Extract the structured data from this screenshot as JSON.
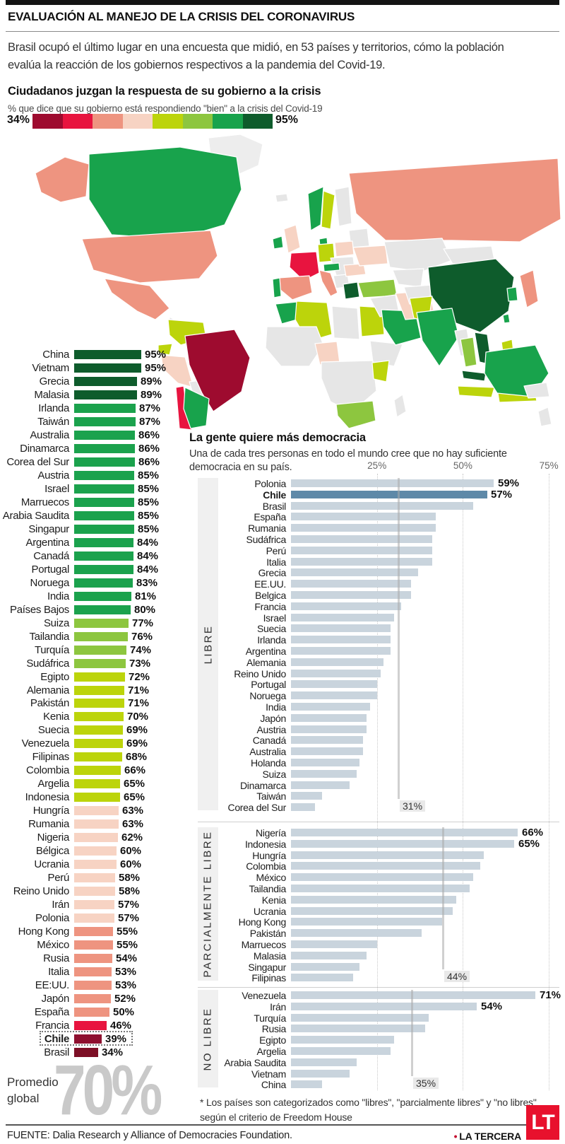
{
  "header": {
    "kicker": "EVALUACIÓN AL MANEJO DE LA CRISIS DEL CORONAVIRUS",
    "intro": "Brasil ocupó el último lugar en una encuesta que midió, en 53 países y territorios, cómo la población evalúa la reacción de los gobiernos respectivos a la pandemia del Covid-19."
  },
  "promedio": {
    "label": "Promedio global",
    "value": "70%"
  },
  "footnote": {
    "text": "* Los países son categorizados como \"libres\", \"parcialmente libres\" y \"no libres\" según el criterio de Freedom House"
  },
  "footer": {
    "source": "FUENTE: Dalia Research y Alliance of Democracies Foundation.",
    "brand": "LA TERCERA",
    "logo_text": "LT"
  },
  "chart_data": [
    {
      "type": "bar",
      "title": "Ciudadanos juzgan la respuesta de su gobierno a la crisis",
      "subtitle": "% que dice que su gobierno está respondiendo \"bien\" a la crisis del Covid-19",
      "unit": "%",
      "xlim": [
        0,
        95
      ],
      "scale_min_label": "34%",
      "scale_max_label": "95%",
      "scale_colors": [
        "#9e0b2f",
        "#e8143f",
        "#ee9480",
        "#f7d3c3",
        "#bcd40b",
        "#8dc63f",
        "#18a34c",
        "#0e5c2c"
      ],
      "items": [
        {
          "name": "China",
          "value": 95,
          "color": "#0e5c2c"
        },
        {
          "name": "Vietnam",
          "value": 95,
          "color": "#0e5c2c"
        },
        {
          "name": "Grecia",
          "value": 89,
          "color": "#0e5c2c"
        },
        {
          "name": "Malasia",
          "value": 89,
          "color": "#0e5c2c"
        },
        {
          "name": "Irlanda",
          "value": 87,
          "color": "#1ba24d"
        },
        {
          "name": "Taiwán",
          "value": 87,
          "color": "#1ba24d"
        },
        {
          "name": "Australia",
          "value": 86,
          "color": "#1ba24d"
        },
        {
          "name": "Dinamarca",
          "value": 86,
          "color": "#1ba24d"
        },
        {
          "name": "Corea del Sur",
          "value": 86,
          "color": "#1ba24d"
        },
        {
          "name": "Austria",
          "value": 85,
          "color": "#1ba24d"
        },
        {
          "name": "Israel",
          "value": 85,
          "color": "#1ba24d"
        },
        {
          "name": "Marruecos",
          "value": 85,
          "color": "#1ba24d"
        },
        {
          "name": "Arabia Saudita",
          "value": 85,
          "color": "#1ba24d"
        },
        {
          "name": "Singapur",
          "value": 85,
          "color": "#1ba24d"
        },
        {
          "name": "Argentina",
          "value": 84,
          "color": "#1ba24d"
        },
        {
          "name": "Canadá",
          "value": 84,
          "color": "#1ba24d"
        },
        {
          "name": "Portugal",
          "value": 84,
          "color": "#1ba24d"
        },
        {
          "name": "Noruega",
          "value": 83,
          "color": "#1ba24d"
        },
        {
          "name": "India",
          "value": 81,
          "color": "#1ba24d"
        },
        {
          "name": "Países Bajos",
          "value": 80,
          "color": "#1ba24d"
        },
        {
          "name": "Suiza",
          "value": 77,
          "color": "#8dc63f"
        },
        {
          "name": "Tailandia",
          "value": 76,
          "color": "#8dc63f"
        },
        {
          "name": "Turquía",
          "value": 74,
          "color": "#8dc63f"
        },
        {
          "name": "Sudáfrica",
          "value": 73,
          "color": "#8dc63f"
        },
        {
          "name": "Egipto",
          "value": 72,
          "color": "#bcd40b"
        },
        {
          "name": "Alemania",
          "value": 71,
          "color": "#bcd40b"
        },
        {
          "name": "Pakistán",
          "value": 71,
          "color": "#bcd40b"
        },
        {
          "name": "Kenia",
          "value": 70,
          "color": "#bcd40b"
        },
        {
          "name": "Suecia",
          "value": 69,
          "color": "#bcd40b"
        },
        {
          "name": "Venezuela",
          "value": 69,
          "color": "#bcd40b"
        },
        {
          "name": "Filipinas",
          "value": 68,
          "color": "#bcd40b"
        },
        {
          "name": "Colombia",
          "value": 66,
          "color": "#bcd40b"
        },
        {
          "name": "Argelia",
          "value": 65,
          "color": "#bcd40b"
        },
        {
          "name": "Indonesia",
          "value": 65,
          "color": "#bcd40b"
        },
        {
          "name": "Hungría",
          "value": 63,
          "color": "#f7d3c3"
        },
        {
          "name": "Rumania",
          "value": 63,
          "color": "#f7d3c3"
        },
        {
          "name": "Nigeria",
          "value": 62,
          "color": "#f7d3c3"
        },
        {
          "name": "Bélgica",
          "value": 60,
          "color": "#f7d3c3"
        },
        {
          "name": "Ucrania",
          "value": 60,
          "color": "#f7d3c3"
        },
        {
          "name": "Perú",
          "value": 58,
          "color": "#f7d3c3"
        },
        {
          "name": "Reino Unido",
          "value": 58,
          "color": "#f7d3c3"
        },
        {
          "name": "Irán",
          "value": 57,
          "color": "#f7d3c3"
        },
        {
          "name": "Polonia",
          "value": 57,
          "color": "#f7d3c3"
        },
        {
          "name": "Hong Kong",
          "value": 55,
          "color": "#ee9480"
        },
        {
          "name": "México",
          "value": 55,
          "color": "#ee9480"
        },
        {
          "name": "Rusia",
          "value": 54,
          "color": "#ee9480"
        },
        {
          "name": "Italia",
          "value": 53,
          "color": "#ee9480"
        },
        {
          "name": "EE:UU.",
          "value": 53,
          "color": "#ee9480"
        },
        {
          "name": "Japón",
          "value": 52,
          "color": "#ee9480"
        },
        {
          "name": "España",
          "value": 50,
          "color": "#ee9480"
        },
        {
          "name": "Francia",
          "value": 46,
          "color": "#e8143f"
        },
        {
          "name": "Chile",
          "value": 39,
          "color": "#8e0f2f",
          "bold": true,
          "boxed": true
        },
        {
          "name": "Brasil",
          "value": 34,
          "color": "#7d0f26"
        }
      ]
    },
    {
      "type": "bar",
      "title": "La gente quiere más democracia",
      "subtitle": "Una de cada tres personas en todo el mundo cree que no hay suficiente democracia en su país.",
      "x_ticks": [
        "25%",
        "50%",
        "75%"
      ],
      "xlim": [
        0,
        78
      ],
      "bar_color": "#c9d4dd",
      "highlight_color": "#5e89a8",
      "groups": [
        {
          "label": "LIBRE",
          "average": 31,
          "average_label": "31%",
          "items": [
            {
              "name": "Polonia",
              "value": 59,
              "show_value": "59%"
            },
            {
              "name": "Chile",
              "value": 57,
              "show_value": "57%",
              "bold": true,
              "highlight": true
            },
            {
              "name": "Brasil",
              "value": 53
            },
            {
              "name": "España",
              "value": 42
            },
            {
              "name": "Rumania",
              "value": 42
            },
            {
              "name": "Sudáfrica",
              "value": 41
            },
            {
              "name": "Perú",
              "value": 41
            },
            {
              "name": "Italia",
              "value": 41
            },
            {
              "name": "Grecia",
              "value": 37
            },
            {
              "name": "EE.UU.",
              "value": 35
            },
            {
              "name": "Belgica",
              "value": 35
            },
            {
              "name": "Francia",
              "value": 32
            },
            {
              "name": "Israel",
              "value": 30
            },
            {
              "name": "Suecia",
              "value": 29
            },
            {
              "name": "Irlanda",
              "value": 29
            },
            {
              "name": "Argentina",
              "value": 29
            },
            {
              "name": "Alemania",
              "value": 27
            },
            {
              "name": "Reino Unido",
              "value": 26
            },
            {
              "name": "Portugal",
              "value": 25
            },
            {
              "name": "Noruega",
              "value": 25
            },
            {
              "name": "India",
              "value": 23
            },
            {
              "name": "Japón",
              "value": 22
            },
            {
              "name": "Austria",
              "value": 22
            },
            {
              "name": "Canadá",
              "value": 21
            },
            {
              "name": "Australia",
              "value": 21
            },
            {
              "name": "Holanda",
              "value": 20
            },
            {
              "name": "Suiza",
              "value": 19
            },
            {
              "name": "Dinamarca",
              "value": 17
            },
            {
              "name": "Taiwán",
              "value": 9
            },
            {
              "name": "Corea del Sur",
              "value": 7
            }
          ]
        },
        {
          "label": "PARCIALMENTE LIBRE",
          "average": 44,
          "average_label": "44%",
          "items": [
            {
              "name": "Nigería",
              "value": 66,
              "show_value": "66%"
            },
            {
              "name": "Indonesia",
              "value": 65,
              "show_value": "65%"
            },
            {
              "name": "Hungría",
              "value": 56
            },
            {
              "name": "Colombia",
              "value": 55
            },
            {
              "name": "México",
              "value": 53
            },
            {
              "name": "Tailandia",
              "value": 52
            },
            {
              "name": "Kenia",
              "value": 48
            },
            {
              "name": "Ucrania",
              "value": 47
            },
            {
              "name": "Hong Kong",
              "value": 44
            },
            {
              "name": "Pakistán",
              "value": 38
            },
            {
              "name": "Marruecos",
              "value": 25
            },
            {
              "name": "Malasia",
              "value": 22
            },
            {
              "name": "Singapur",
              "value": 20
            },
            {
              "name": "Filipinas",
              "value": 18
            }
          ]
        },
        {
          "label": "NO LIBRE",
          "average": 35,
          "average_label": "35%",
          "items": [
            {
              "name": "Venezuela",
              "value": 71,
              "show_value": "71%"
            },
            {
              "name": "Irán",
              "value": 54,
              "show_value": "54%"
            },
            {
              "name": "Turquía",
              "value": 40
            },
            {
              "name": "Rusia",
              "value": 39
            },
            {
              "name": "Egipto",
              "value": 30
            },
            {
              "name": "Argelia",
              "value": 29
            },
            {
              "name": "Arabia Saudita",
              "value": 19
            },
            {
              "name": "Vietnam",
              "value": 17
            },
            {
              "name": "China",
              "value": 9
            }
          ]
        }
      ]
    }
  ],
  "map": {
    "default_fill": "#e6e6e6",
    "regions": {
      "groenlandia": "#ededed",
      "alaska": "#ee9480",
      "canada": "#18a34c",
      "eeuu": "#ee9480",
      "mexico": "#ee9480",
      "centroamerica": "#e6e6e6",
      "venezuela_colombia": "#bcd40b",
      "ecuador": "#bcd40b",
      "peru": "#f7d3c3",
      "bolivia": "#e6e6e6",
      "brasil": "#9e0b2f",
      "chile": "#e8143f",
      "argentina": "#18a34c",
      "islandia": "#e6e6e6",
      "noruega": "#18a34c",
      "suecia": "#bcd40b",
      "finlandia": "#e6e6e6",
      "dinamarca": "#18a34c",
      "irlanda": "#18a34c",
      "reino_unido": "#f7d3c3",
      "francia": "#e8143f",
      "alemania": "#bcd40b",
      "polonia": "#f7d3c3",
      "europa_central": "#e6e6e6",
      "austria": "#18a34c",
      "italia": "#ee9480",
      "espana": "#ee9480",
      "portugal": "#18a34c",
      "grecia": "#0e5c2c",
      "rumania": "#f7d3c3",
      "ucrania": "#f7d3c3",
      "baltico": "#e6e6e6",
      "balcanes": "#e6e6e6",
      "turquia": "#8dc63f",
      "marruecos": "#18a34c",
      "argelia": "#bcd40b",
      "libia": "#e6e6e6",
      "egipto": "#bcd40b",
      "africa_occidental": "#e6e6e6",
      "nigeria": "#f7d3c3",
      "africa_central": "#e6e6e6",
      "cuerno_de_africa": "#e6e6e6",
      "kenia": "#bcd40b",
      "sudafrica": "#8dc63f",
      "madagascar": "#e6e6e6",
      "oriente_medio": "#e6e6e6",
      "arabia_saudita": "#18a34c",
      "iran": "#f7d3c3",
      "rusia": "#ee9480",
      "kazajistan": "#e6e6e6",
      "asia_central": "#e6e6e6",
      "afganistan": "#e6e6e6",
      "mongolia": "#e6e6e6",
      "china": "#0e5c2c",
      "pakistan": "#bcd40b",
      "india": "#18a34c",
      "myanmar": "#e6e6e6",
      "tailandia": "#8dc63f",
      "vietnam": "#0e5c2c",
      "malasia": "#0e5c2c",
      "borneo_malasia": "#0e5c2c",
      "indonesia": "#bcd40b",
      "filipinas": "#bcd40b",
      "japon": "#ee9480",
      "corea_del_sur": "#18a34c",
      "taiwan": "#18a34c",
      "australia": "#18a34c",
      "nueva_zelanda": "#e6e6e6",
      "papua": "#e6e6e6"
    }
  }
}
